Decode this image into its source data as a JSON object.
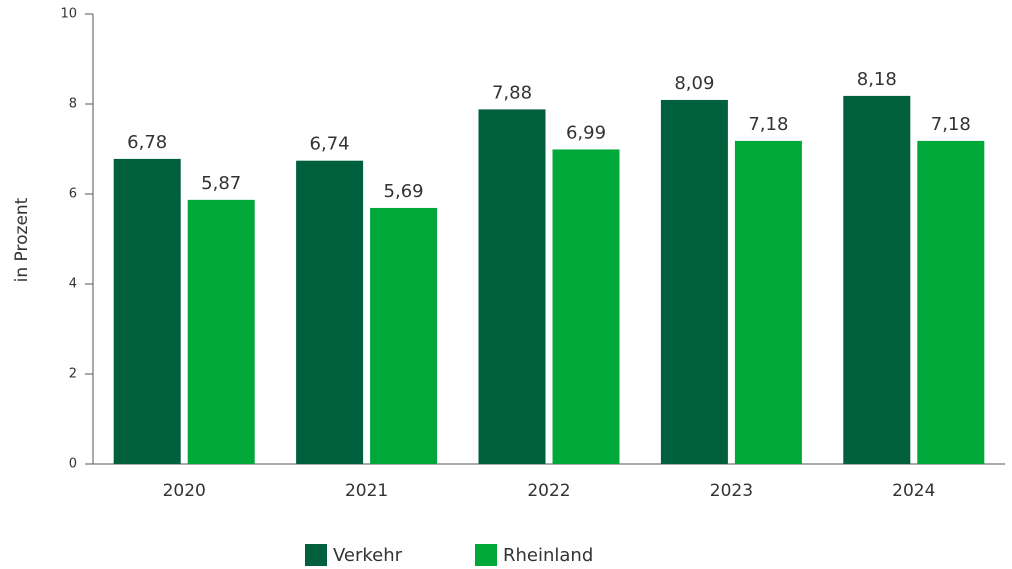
{
  "chart_data": {
    "type": "bar",
    "y_label": "in Prozent",
    "categories": [
      "2020",
      "2021",
      "2022",
      "2023",
      "2024"
    ],
    "series": [
      {
        "name": "Verkehr",
        "color": "#005f3c",
        "values": [
          6.78,
          6.74,
          7.88,
          8.09,
          8.18
        ],
        "value_labels": [
          "6,78",
          "6,74",
          "7,88",
          "8,09",
          "8,18"
        ]
      },
      {
        "name": "Rheinland",
        "color": "#00a83a",
        "values": [
          5.87,
          5.69,
          6.99,
          7.18,
          7.18
        ],
        "value_labels": [
          "5,87",
          "5,69",
          "6,99",
          "7,18",
          "7,18"
        ]
      }
    ],
    "ylim": [
      0,
      10
    ],
    "yticks": [
      0,
      2,
      4,
      6,
      8,
      10
    ],
    "legend": "bottom"
  }
}
